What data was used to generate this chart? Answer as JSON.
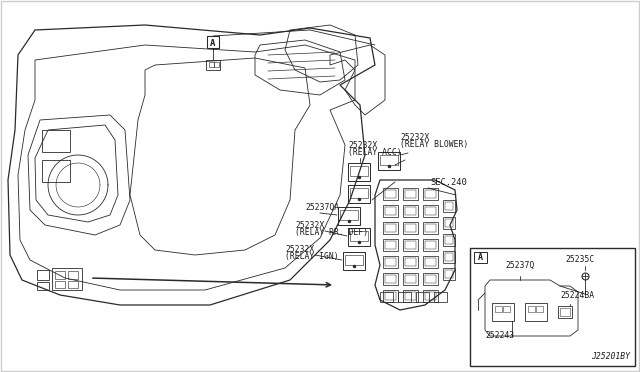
{
  "background_color": "#ffffff",
  "line_color": "#2a2a2a",
  "text_color": "#1a1a1a",
  "labels": {
    "A_callout": "A",
    "label1_code": "25232X",
    "label1_desc": "(RELAY ACC)",
    "label2_code": "25232X",
    "label2_desc": "(RELAY BLOWER)",
    "label3_code": "25237QA",
    "label4_code": "25232X",
    "label4_desc": "(RELAY RR. DEF)",
    "label5_code": "25232X",
    "label5_desc": "(RELAY IGN)",
    "label6": "SEC.240",
    "label7_code": "25235C",
    "label8_code": "25237Q",
    "label9_code": "25224BA",
    "label10_code": "252243",
    "footer": "J25201BY"
  },
  "fig_width": 6.4,
  "fig_height": 3.72,
  "dpi": 100
}
